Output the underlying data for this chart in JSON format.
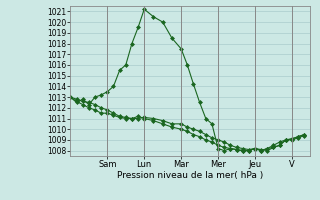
{
  "xlabel": "Pression niveau de la mer( hPa )",
  "background_color": "#cce8e4",
  "grid_color": "#aacccc",
  "line_color": "#1a6620",
  "ylim": [
    1007.5,
    1021.5
  ],
  "yticks": [
    1008,
    1009,
    1010,
    1011,
    1012,
    1013,
    1014,
    1015,
    1016,
    1017,
    1018,
    1019,
    1020,
    1021
  ],
  "day_labels": [
    "Sam",
    "Lun",
    "Mar",
    "Mer",
    "Jeu",
    "V"
  ],
  "day_tick_positions": [
    24,
    48,
    72,
    96,
    120,
    144
  ],
  "day_separator_positions": [
    24,
    48,
    72,
    96,
    120,
    144
  ],
  "xlim": [
    0,
    156
  ],
  "series1_x": [
    0,
    4,
    8,
    12,
    16,
    20,
    24,
    28,
    32,
    36,
    40,
    44,
    48,
    54,
    60,
    66,
    72,
    76,
    80,
    84,
    88,
    92,
    96,
    100,
    104,
    108,
    112,
    116,
    120,
    124,
    128,
    132,
    136,
    140,
    144,
    148,
    152
  ],
  "series1_y": [
    1013.0,
    1012.5,
    1012.8,
    1012.3,
    1013.0,
    1013.2,
    1013.5,
    1014.0,
    1015.5,
    1016.0,
    1018.0,
    1019.5,
    1021.2,
    1020.5,
    1020.0,
    1018.5,
    1017.5,
    1016.0,
    1014.2,
    1012.5,
    1011.0,
    1010.5,
    1008.2,
    1008.0,
    1008.2,
    1008.1,
    1008.0,
    1008.0,
    1008.2,
    1008.1,
    1008.0,
    1008.3,
    1008.5,
    1009.0,
    1009.1,
    1009.3,
    1009.5
  ],
  "series2_x": [
    0,
    4,
    8,
    12,
    16,
    20,
    24,
    28,
    32,
    36,
    40,
    44,
    48,
    54,
    60,
    66,
    72,
    76,
    80,
    84,
    88,
    92,
    96,
    100,
    104,
    108,
    112,
    116,
    120,
    124,
    128,
    132,
    136,
    140,
    144,
    148,
    152
  ],
  "series2_y": [
    1013.0,
    1012.8,
    1012.6,
    1012.5,
    1012.3,
    1012.0,
    1011.8,
    1011.5,
    1011.2,
    1011.1,
    1011.0,
    1011.0,
    1011.1,
    1011.0,
    1010.8,
    1010.5,
    1010.5,
    1010.2,
    1010.0,
    1009.8,
    1009.5,
    1009.2,
    1009.0,
    1008.8,
    1008.5,
    1008.3,
    1008.2,
    1008.1,
    1008.2,
    1008.0,
    1008.2,
    1008.5,
    1008.8,
    1009.0,
    1009.1,
    1009.3,
    1009.5
  ],
  "series3_x": [
    0,
    4,
    8,
    12,
    16,
    20,
    24,
    28,
    32,
    36,
    40,
    44,
    48,
    54,
    60,
    66,
    72,
    76,
    80,
    84,
    88,
    92,
    96,
    100,
    104,
    108,
    112,
    116,
    120,
    124,
    128,
    132,
    136,
    140,
    144,
    148,
    152
  ],
  "series3_y": [
    1013.0,
    1012.6,
    1012.3,
    1012.0,
    1011.8,
    1011.5,
    1011.5,
    1011.3,
    1011.1,
    1011.0,
    1011.0,
    1011.2,
    1011.0,
    1010.8,
    1010.5,
    1010.2,
    1010.0,
    1009.8,
    1009.5,
    1009.3,
    1009.0,
    1008.8,
    1008.5,
    1008.3,
    1008.2,
    1008.1,
    1008.0,
    1008.0,
    1008.2,
    1008.0,
    1008.2,
    1008.3,
    1008.5,
    1009.0,
    1009.0,
    1009.2,
    1009.4
  ],
  "separator_color": "#888888",
  "ytick_fontsize": 5.5,
  "xtick_fontsize": 6.0
}
